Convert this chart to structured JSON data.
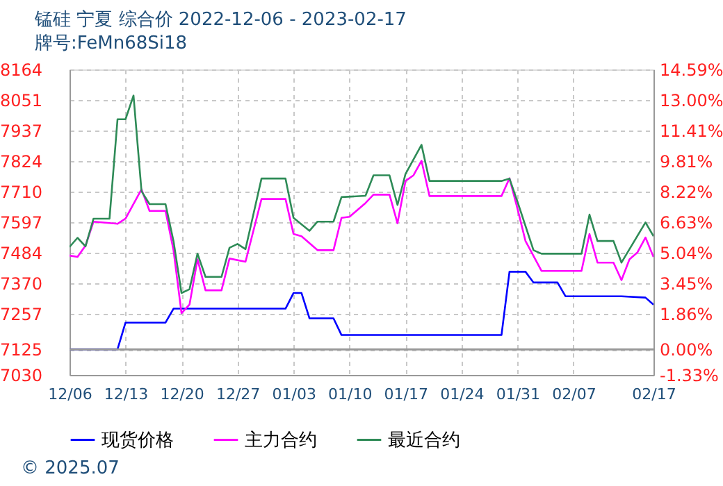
{
  "chart_data": {
    "type": "line",
    "title": "锰硅  宁夏  综合价  2022-12-06 - 2023-02-17",
    "subtitle": "牌号:FeMn68Si18",
    "xlim": [
      "2022-12-06",
      "2023-02-17"
    ],
    "xticks": [
      {
        "value": "2022-12-06",
        "label": "12/06"
      },
      {
        "value": "2022-12-13",
        "label": "12/13"
      },
      {
        "value": "2022-12-20",
        "label": "12/20"
      },
      {
        "value": "2022-12-27",
        "label": "12/27"
      },
      {
        "value": "2023-01-03",
        "label": "01/03"
      },
      {
        "value": "2023-01-10",
        "label": "01/10"
      },
      {
        "value": "2023-01-17",
        "label": "01/17"
      },
      {
        "value": "2023-01-24",
        "label": "01/24"
      },
      {
        "value": "2023-01-31",
        "label": "01/31"
      },
      {
        "value": "2023-02-07",
        "label": "02/07"
      },
      {
        "value": "2023-02-17",
        "label": "02/17"
      }
    ],
    "ylim": [
      7030,
      8164
    ],
    "yticks": [
      7030,
      7125,
      7257,
      7370,
      7484,
      7597,
      7710,
      7824,
      7937,
      8051,
      8164
    ],
    "y2lim": [
      -1.33,
      14.59
    ],
    "y2ticks": [
      {
        "value": -1.33,
        "label": "-1.33%"
      },
      {
        "value": 0,
        "label": "0.00%"
      },
      {
        "value": 1.86,
        "label": "1.86%"
      },
      {
        "value": 3.45,
        "label": "3.45%"
      },
      {
        "value": 5.04,
        "label": "5.04%"
      },
      {
        "value": 6.63,
        "label": "6.63%"
      },
      {
        "value": 8.22,
        "label": "8.22%"
      },
      {
        "value": 9.81,
        "label": "9.81%"
      },
      {
        "value": 11.41,
        "label": "11.41%"
      },
      {
        "value": 13.0,
        "label": "13.00%"
      },
      {
        "value": 14.59,
        "label": "14.59%"
      }
    ],
    "ref_lines": [
      {
        "axis": "y2",
        "value": 0,
        "color": "#999999",
        "line_style": "solid"
      }
    ],
    "grid": true,
    "legend": "bottom",
    "marker": "none",
    "line_style": "solid",
    "annotations": [
      "© 2025.07"
    ],
    "series": [
      {
        "name": "现货价格",
        "color": "#0000ff",
        "x": [
          "2022-12-06",
          "2022-12-12",
          "2022-12-13",
          "2022-12-18",
          "2022-12-19",
          "2023-01-02",
          "2023-01-03",
          "2023-01-04",
          "2023-01-05",
          "2023-01-08",
          "2023-01-09",
          "2023-01-29",
          "2023-01-30",
          "2023-02-01",
          "2023-02-02",
          "2023-02-05",
          "2023-02-06",
          "2023-02-13",
          "2023-02-16",
          "2023-02-17"
        ],
        "values": [
          7125,
          7125,
          7224,
          7224,
          7276,
          7276,
          7334,
          7334,
          7240,
          7240,
          7178,
          7178,
          7413,
          7413,
          7373,
          7373,
          7322,
          7322,
          7317,
          7291
        ]
      },
      {
        "name": "主力合约",
        "color": "#ff00ff",
        "x": [
          "2022-12-06",
          "2022-12-07",
          "2022-12-08",
          "2022-12-09",
          "2022-12-12",
          "2022-12-13",
          "2022-12-15",
          "2022-12-16",
          "2022-12-18",
          "2022-12-19",
          "2022-12-20",
          "2022-12-21",
          "2022-12-22",
          "2022-12-23",
          "2022-12-25",
          "2022-12-26",
          "2022-12-28",
          "2022-12-30",
          "2023-01-02",
          "2023-01-03",
          "2023-01-04",
          "2023-01-06",
          "2023-01-08",
          "2023-01-09",
          "2023-01-10",
          "2023-01-12",
          "2023-01-13",
          "2023-01-15",
          "2023-01-16",
          "2023-01-17",
          "2023-01-18",
          "2023-01-19",
          "2023-01-20",
          "2023-01-29",
          "2023-01-30",
          "2023-01-31",
          "2023-02-01",
          "2023-02-03",
          "2023-02-08",
          "2023-02-09",
          "2023-02-10",
          "2023-02-12",
          "2023-02-13",
          "2023-02-14",
          "2023-02-15",
          "2023-02-16",
          "2023-02-17"
        ],
        "values": [
          7473,
          7468,
          7510,
          7599,
          7591,
          7610,
          7719,
          7639,
          7639,
          7493,
          7259,
          7291,
          7459,
          7344,
          7344,
          7462,
          7450,
          7683,
          7683,
          7553,
          7545,
          7493,
          7493,
          7613,
          7617,
          7668,
          7699,
          7699,
          7593,
          7750,
          7771,
          7825,
          7694,
          7694,
          7760,
          7647,
          7527,
          7416,
          7416,
          7553,
          7447,
          7447,
          7382,
          7459,
          7485,
          7540,
          7468
        ]
      },
      {
        "name": "最近合约",
        "color": "#2e8b57",
        "x": [
          "2022-12-06",
          "2022-12-07",
          "2022-12-08",
          "2022-12-09",
          "2022-12-11",
          "2022-12-12",
          "2022-12-13",
          "2022-12-14",
          "2022-12-15",
          "2022-12-16",
          "2022-12-18",
          "2022-12-19",
          "2022-12-20",
          "2022-12-21",
          "2022-12-22",
          "2022-12-23",
          "2022-12-25",
          "2022-12-26",
          "2022-12-27",
          "2022-12-28",
          "2022-12-30",
          "2023-01-02",
          "2023-01-03",
          "2023-01-05",
          "2023-01-06",
          "2023-01-08",
          "2023-01-09",
          "2023-01-12",
          "2023-01-13",
          "2023-01-15",
          "2023-01-16",
          "2023-01-17",
          "2023-01-19",
          "2023-01-20",
          "2023-01-29",
          "2023-01-30",
          "2023-01-31",
          "2023-02-02",
          "2023-02-03",
          "2023-02-08",
          "2023-02-09",
          "2023-02-10",
          "2023-02-12",
          "2023-02-13",
          "2023-02-16",
          "2023-02-17"
        ],
        "values": [
          7505,
          7539,
          7507,
          7610,
          7610,
          7979,
          7979,
          8067,
          7712,
          7664,
          7664,
          7527,
          7334,
          7348,
          7480,
          7394,
          7394,
          7502,
          7516,
          7497,
          7759,
          7759,
          7613,
          7565,
          7599,
          7599,
          7690,
          7695,
          7771,
          7771,
          7661,
          7776,
          7884,
          7750,
          7750,
          7759,
          7673,
          7493,
          7480,
          7480,
          7625,
          7527,
          7527,
          7447,
          7596,
          7545
        ]
      }
    ]
  }
}
